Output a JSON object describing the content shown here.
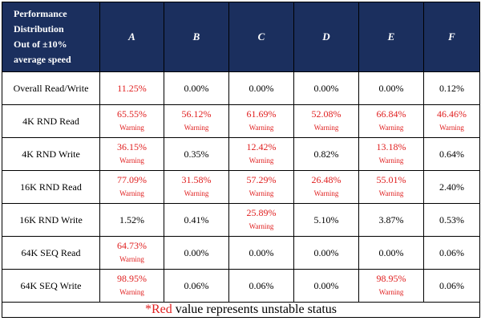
{
  "table": {
    "corner": [
      "Performance",
      "Distribution",
      "Out of ±10%",
      "average speed"
    ],
    "columns": [
      "A",
      "B",
      "C",
      "D",
      "E",
      "F"
    ],
    "rows": [
      {
        "label": "Overall Read/Write",
        "cells": [
          {
            "value": "11.25%",
            "warning": false,
            "red": true
          },
          {
            "value": "0.00%",
            "warning": false,
            "red": false
          },
          {
            "value": "0.00%",
            "warning": false,
            "red": false
          },
          {
            "value": "0.00%",
            "warning": false,
            "red": false
          },
          {
            "value": "0.00%",
            "warning": false,
            "red": false
          },
          {
            "value": "0.12%",
            "warning": false,
            "red": false
          }
        ]
      },
      {
        "label": "4K RND Read",
        "cells": [
          {
            "value": "65.55%",
            "warning": true,
            "red": true
          },
          {
            "value": "56.12%",
            "warning": true,
            "red": true
          },
          {
            "value": "61.69%",
            "warning": true,
            "red": true
          },
          {
            "value": "52.08%",
            "warning": true,
            "red": true
          },
          {
            "value": "66.84%",
            "warning": true,
            "red": true
          },
          {
            "value": "46.46%",
            "warning": true,
            "red": true
          }
        ]
      },
      {
        "label": "4K RND Write",
        "cells": [
          {
            "value": "36.15%",
            "warning": true,
            "red": true
          },
          {
            "value": "0.35%",
            "warning": false,
            "red": false
          },
          {
            "value": "12.42%",
            "warning": true,
            "red": true
          },
          {
            "value": "0.82%",
            "warning": false,
            "red": false
          },
          {
            "value": "13.18%",
            "warning": true,
            "red": true
          },
          {
            "value": "0.64%",
            "warning": false,
            "red": false
          }
        ]
      },
      {
        "label": "16K RND Read",
        "cells": [
          {
            "value": "77.09%",
            "warning": true,
            "red": true
          },
          {
            "value": "31.58%",
            "warning": true,
            "red": true
          },
          {
            "value": "57.29%",
            "warning": true,
            "red": true
          },
          {
            "value": "26.48%",
            "warning": true,
            "red": true
          },
          {
            "value": "55.01%",
            "warning": true,
            "red": true
          },
          {
            "value": "2.40%",
            "warning": false,
            "red": false
          }
        ]
      },
      {
        "label": "16K RND Write",
        "cells": [
          {
            "value": "1.52%",
            "warning": false,
            "red": false
          },
          {
            "value": "0.41%",
            "warning": false,
            "red": false
          },
          {
            "value": "25.89%",
            "warning": true,
            "red": true
          },
          {
            "value": "5.10%",
            "warning": false,
            "red": false
          },
          {
            "value": "3.87%",
            "warning": false,
            "red": false
          },
          {
            "value": "0.53%",
            "warning": false,
            "red": false
          }
        ]
      },
      {
        "label": "64K SEQ Read",
        "cells": [
          {
            "value": "64.73%",
            "warning": true,
            "red": true
          },
          {
            "value": "0.00%",
            "warning": false,
            "red": false
          },
          {
            "value": "0.00%",
            "warning": false,
            "red": false
          },
          {
            "value": "0.00%",
            "warning": false,
            "red": false
          },
          {
            "value": "0.00%",
            "warning": false,
            "red": false
          },
          {
            "value": "0.06%",
            "warning": false,
            "red": false
          }
        ]
      },
      {
        "label": "64K SEQ Write",
        "cells": [
          {
            "value": "98.95%",
            "warning": true,
            "red": true
          },
          {
            "value": "0.06%",
            "warning": false,
            "red": false
          },
          {
            "value": "0.06%",
            "warning": false,
            "red": false
          },
          {
            "value": "0.00%",
            "warning": false,
            "red": false
          },
          {
            "value": "98.95%",
            "warning": true,
            "red": true
          },
          {
            "value": "0.06%",
            "warning": false,
            "red": false
          }
        ]
      }
    ],
    "warning_label": "Warning",
    "footnote": {
      "star": "*",
      "red_word": "Red",
      "rest": " value represents unstable status"
    }
  },
  "colors": {
    "header_bg": "#1b2f5e",
    "header_text": "#ffffff",
    "warning_red": "#e02020"
  }
}
